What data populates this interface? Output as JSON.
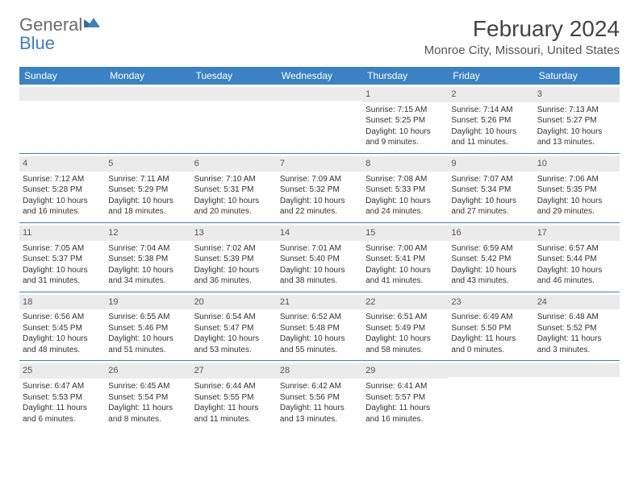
{
  "brand": {
    "part1": "General",
    "part2": "Blue"
  },
  "title": "February 2024",
  "location": "Monroe City, Missouri, United States",
  "colors": {
    "header_bar": "#3b82c4",
    "daynum_bg": "#ebebeb",
    "week_divider": "#3b82c4",
    "text": "#333333",
    "brand_gray": "#6b6b6b",
    "brand_blue": "#3b7fc4"
  },
  "weekdays": [
    "Sunday",
    "Monday",
    "Tuesday",
    "Wednesday",
    "Thursday",
    "Friday",
    "Saturday"
  ],
  "weeks": [
    [
      {
        "n": "",
        "sunrise": "",
        "sunset": "",
        "daylight": ""
      },
      {
        "n": "",
        "sunrise": "",
        "sunset": "",
        "daylight": ""
      },
      {
        "n": "",
        "sunrise": "",
        "sunset": "",
        "daylight": ""
      },
      {
        "n": "",
        "sunrise": "",
        "sunset": "",
        "daylight": ""
      },
      {
        "n": "1",
        "sunrise": "Sunrise: 7:15 AM",
        "sunset": "Sunset: 5:25 PM",
        "daylight": "Daylight: 10 hours and 9 minutes."
      },
      {
        "n": "2",
        "sunrise": "Sunrise: 7:14 AM",
        "sunset": "Sunset: 5:26 PM",
        "daylight": "Daylight: 10 hours and 11 minutes."
      },
      {
        "n": "3",
        "sunrise": "Sunrise: 7:13 AM",
        "sunset": "Sunset: 5:27 PM",
        "daylight": "Daylight: 10 hours and 13 minutes."
      }
    ],
    [
      {
        "n": "4",
        "sunrise": "Sunrise: 7:12 AM",
        "sunset": "Sunset: 5:28 PM",
        "daylight": "Daylight: 10 hours and 16 minutes."
      },
      {
        "n": "5",
        "sunrise": "Sunrise: 7:11 AM",
        "sunset": "Sunset: 5:29 PM",
        "daylight": "Daylight: 10 hours and 18 minutes."
      },
      {
        "n": "6",
        "sunrise": "Sunrise: 7:10 AM",
        "sunset": "Sunset: 5:31 PM",
        "daylight": "Daylight: 10 hours and 20 minutes."
      },
      {
        "n": "7",
        "sunrise": "Sunrise: 7:09 AM",
        "sunset": "Sunset: 5:32 PM",
        "daylight": "Daylight: 10 hours and 22 minutes."
      },
      {
        "n": "8",
        "sunrise": "Sunrise: 7:08 AM",
        "sunset": "Sunset: 5:33 PM",
        "daylight": "Daylight: 10 hours and 24 minutes."
      },
      {
        "n": "9",
        "sunrise": "Sunrise: 7:07 AM",
        "sunset": "Sunset: 5:34 PM",
        "daylight": "Daylight: 10 hours and 27 minutes."
      },
      {
        "n": "10",
        "sunrise": "Sunrise: 7:06 AM",
        "sunset": "Sunset: 5:35 PM",
        "daylight": "Daylight: 10 hours and 29 minutes."
      }
    ],
    [
      {
        "n": "11",
        "sunrise": "Sunrise: 7:05 AM",
        "sunset": "Sunset: 5:37 PM",
        "daylight": "Daylight: 10 hours and 31 minutes."
      },
      {
        "n": "12",
        "sunrise": "Sunrise: 7:04 AM",
        "sunset": "Sunset: 5:38 PM",
        "daylight": "Daylight: 10 hours and 34 minutes."
      },
      {
        "n": "13",
        "sunrise": "Sunrise: 7:02 AM",
        "sunset": "Sunset: 5:39 PM",
        "daylight": "Daylight: 10 hours and 36 minutes."
      },
      {
        "n": "14",
        "sunrise": "Sunrise: 7:01 AM",
        "sunset": "Sunset: 5:40 PM",
        "daylight": "Daylight: 10 hours and 38 minutes."
      },
      {
        "n": "15",
        "sunrise": "Sunrise: 7:00 AM",
        "sunset": "Sunset: 5:41 PM",
        "daylight": "Daylight: 10 hours and 41 minutes."
      },
      {
        "n": "16",
        "sunrise": "Sunrise: 6:59 AM",
        "sunset": "Sunset: 5:42 PM",
        "daylight": "Daylight: 10 hours and 43 minutes."
      },
      {
        "n": "17",
        "sunrise": "Sunrise: 6:57 AM",
        "sunset": "Sunset: 5:44 PM",
        "daylight": "Daylight: 10 hours and 46 minutes."
      }
    ],
    [
      {
        "n": "18",
        "sunrise": "Sunrise: 6:56 AM",
        "sunset": "Sunset: 5:45 PM",
        "daylight": "Daylight: 10 hours and 48 minutes."
      },
      {
        "n": "19",
        "sunrise": "Sunrise: 6:55 AM",
        "sunset": "Sunset: 5:46 PM",
        "daylight": "Daylight: 10 hours and 51 minutes."
      },
      {
        "n": "20",
        "sunrise": "Sunrise: 6:54 AM",
        "sunset": "Sunset: 5:47 PM",
        "daylight": "Daylight: 10 hours and 53 minutes."
      },
      {
        "n": "21",
        "sunrise": "Sunrise: 6:52 AM",
        "sunset": "Sunset: 5:48 PM",
        "daylight": "Daylight: 10 hours and 55 minutes."
      },
      {
        "n": "22",
        "sunrise": "Sunrise: 6:51 AM",
        "sunset": "Sunset: 5:49 PM",
        "daylight": "Daylight: 10 hours and 58 minutes."
      },
      {
        "n": "23",
        "sunrise": "Sunrise: 6:49 AM",
        "sunset": "Sunset: 5:50 PM",
        "daylight": "Daylight: 11 hours and 0 minutes."
      },
      {
        "n": "24",
        "sunrise": "Sunrise: 6:48 AM",
        "sunset": "Sunset: 5:52 PM",
        "daylight": "Daylight: 11 hours and 3 minutes."
      }
    ],
    [
      {
        "n": "25",
        "sunrise": "Sunrise: 6:47 AM",
        "sunset": "Sunset: 5:53 PM",
        "daylight": "Daylight: 11 hours and 6 minutes."
      },
      {
        "n": "26",
        "sunrise": "Sunrise: 6:45 AM",
        "sunset": "Sunset: 5:54 PM",
        "daylight": "Daylight: 11 hours and 8 minutes."
      },
      {
        "n": "27",
        "sunrise": "Sunrise: 6:44 AM",
        "sunset": "Sunset: 5:55 PM",
        "daylight": "Daylight: 11 hours and 11 minutes."
      },
      {
        "n": "28",
        "sunrise": "Sunrise: 6:42 AM",
        "sunset": "Sunset: 5:56 PM",
        "daylight": "Daylight: 11 hours and 13 minutes."
      },
      {
        "n": "29",
        "sunrise": "Sunrise: 6:41 AM",
        "sunset": "Sunset: 5:57 PM",
        "daylight": "Daylight: 11 hours and 16 minutes."
      },
      {
        "n": "",
        "sunrise": "",
        "sunset": "",
        "daylight": ""
      },
      {
        "n": "",
        "sunrise": "",
        "sunset": "",
        "daylight": ""
      }
    ]
  ]
}
